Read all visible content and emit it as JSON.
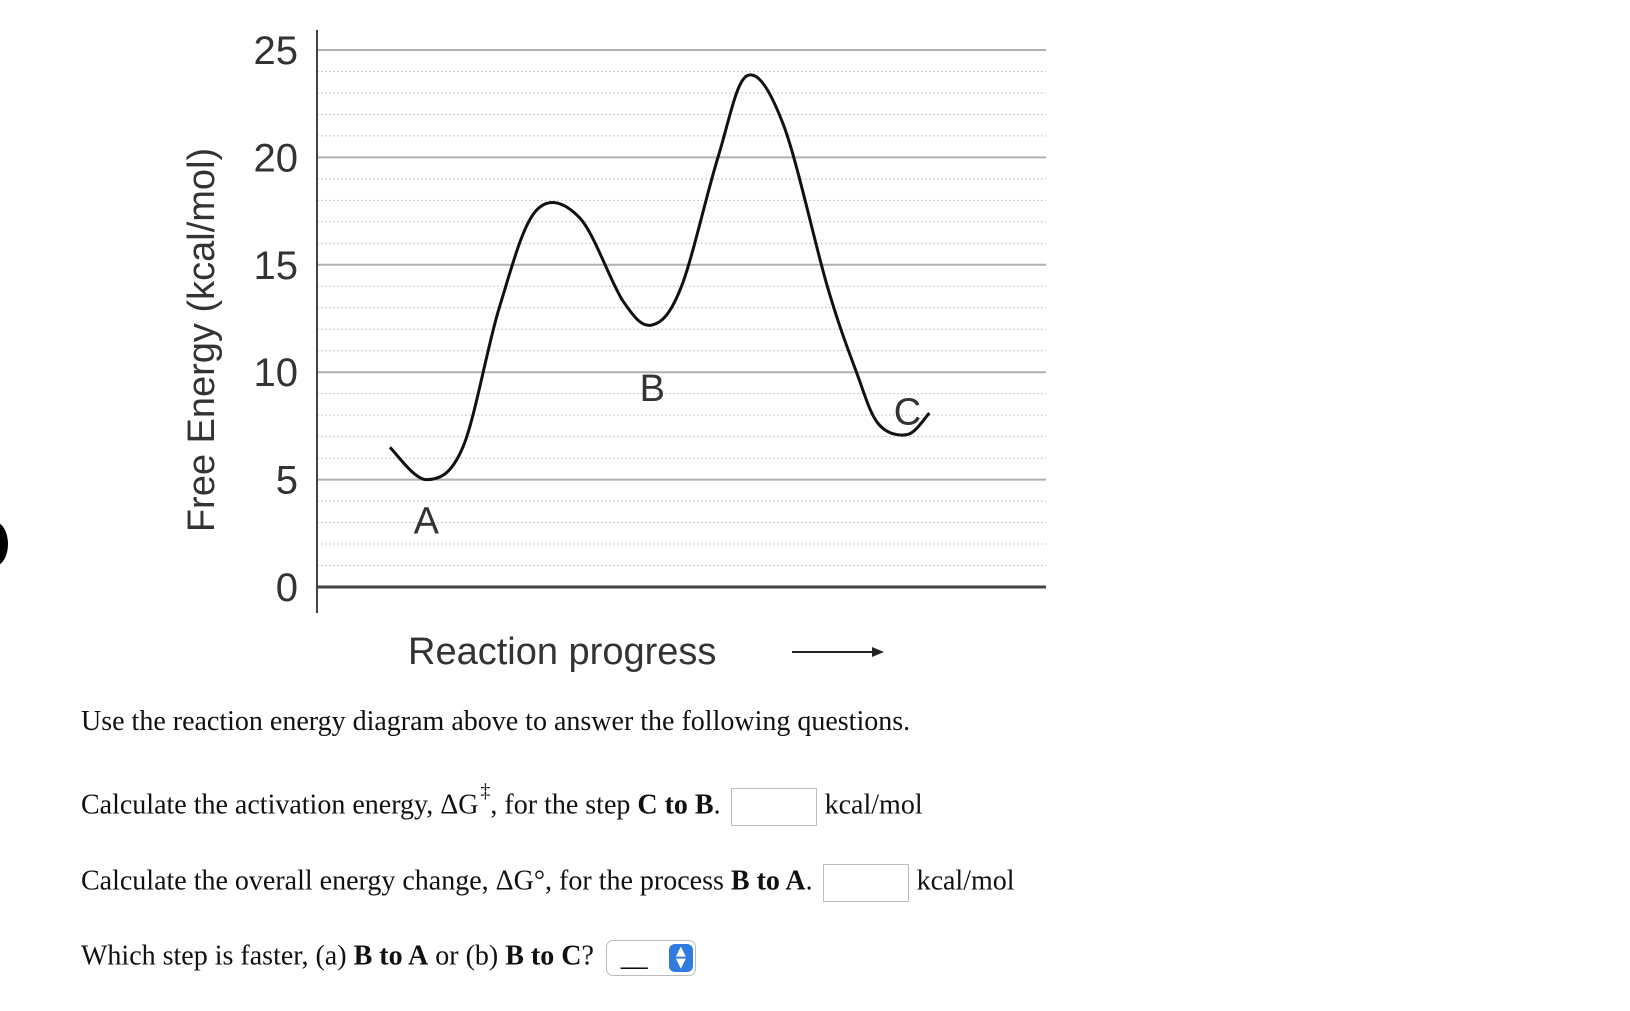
{
  "chart_data": {
    "type": "line",
    "ylabel": "Free Energy (kcal/mol)",
    "xlabel": "Reaction progress",
    "ylim": [
      0,
      25
    ],
    "yticks": [
      0,
      5,
      10,
      15,
      20,
      25
    ],
    "grid": true,
    "series": [
      {
        "values_description_free": true,
        "points": [
          [
            0.1,
            6.5
          ],
          [
            0.15,
            5.0
          ],
          [
            0.2,
            6.5
          ],
          [
            0.25,
            13.0
          ],
          [
            0.3,
            17.5
          ],
          [
            0.36,
            17.2
          ],
          [
            0.42,
            13.3
          ],
          [
            0.46,
            12.2
          ],
          [
            0.5,
            14.0
          ],
          [
            0.55,
            20.0
          ],
          [
            0.59,
            23.8
          ],
          [
            0.64,
            21.5
          ],
          [
            0.7,
            14.0
          ],
          [
            0.74,
            10.0
          ],
          [
            0.77,
            7.6
          ],
          [
            0.81,
            7.1
          ],
          [
            0.84,
            8.1
          ]
        ]
      }
    ],
    "point_labels": [
      {
        "text": "A",
        "x": 0.15,
        "y": 5.0
      },
      {
        "text": "B",
        "x": 0.46,
        "y": 12.2
      },
      {
        "text": "C",
        "x": 0.81,
        "y": 7.1
      }
    ]
  },
  "intro": "Use the reaction energy diagram above to answer the following questions.",
  "q1": {
    "before": "Calculate the activation energy, ΔG",
    "sup": "‡",
    "mid": ", for the step ",
    "bold": "C to B",
    "after": ".",
    "unit": "kcal/mol"
  },
  "q2": {
    "before": "Calculate the overall energy change, ΔG°, for the process ",
    "bold": "B to A",
    "after": ".",
    "unit": "kcal/mol"
  },
  "q3": {
    "before": "Which step is faster, (a) ",
    "bold_a": "B to A",
    "mid": " or (b) ",
    "bold_b": "B to C",
    "after": "?",
    "select_value": "__"
  }
}
